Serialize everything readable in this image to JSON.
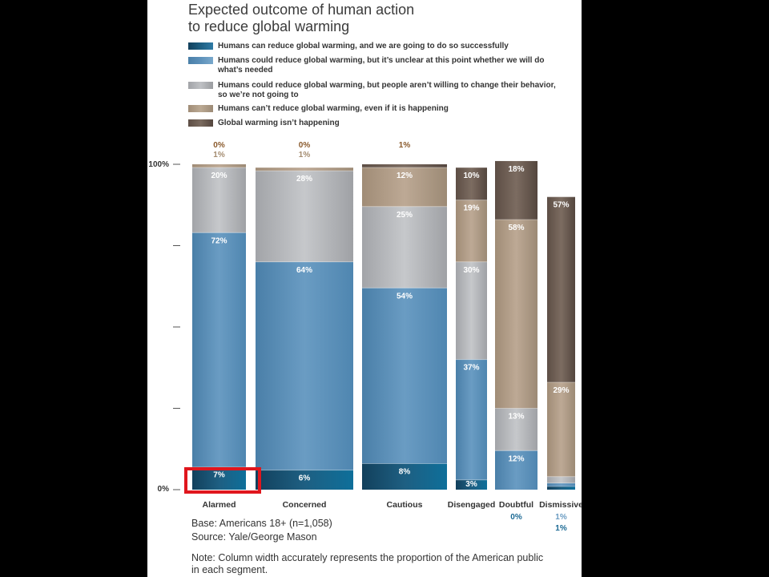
{
  "chart_data": {
    "type": "bar",
    "subtype": "stacked-100-variable-width",
    "title": "Expected outcome of human action to reduce global warming",
    "title_lines": [
      "Expected outcome of human action",
      "to reduce global warming"
    ],
    "ylim": [
      0,
      100
    ],
    "y_ticks": [
      "100%",
      "0%"
    ],
    "categories": [
      "Alarmed",
      "Concerned",
      "Cautious",
      "Disengaged",
      "Doubtful",
      "Dismissive"
    ],
    "series": [
      {
        "name": "Humans can reduce global warming, and we are going to do so successfully",
        "label_lines": [
          "Humans can reduce global warming, and we are going to do so successfully"
        ],
        "values": [
          7,
          6,
          8,
          3,
          0,
          1
        ],
        "labels": [
          "7%",
          "6%",
          "8%",
          "3%",
          "0%",
          "1%"
        ]
      },
      {
        "name": "Humans could reduce global warming, but it's unclear at this point whether we will do what's needed",
        "label_lines": [
          "Humans could reduce global warming, but it’s unclear at this point whether we will do",
          "what’s needed"
        ],
        "values": [
          72,
          64,
          54,
          37,
          12,
          1
        ],
        "labels": [
          "72%",
          "64%",
          "54%",
          "37%",
          "12%",
          "1%"
        ]
      },
      {
        "name": "Humans could reduce global warming, but people aren't willing to change their behavior, so we're not going to",
        "label_lines": [
          "Humans could reduce global warming, but people aren’t willing to change their behavior,",
          "so we’re not going to"
        ],
        "values": [
          20,
          28,
          25,
          30,
          13,
          2
        ],
        "labels": [
          "20%",
          "28%",
          "25%",
          "30%",
          "13%",
          "2%"
        ]
      },
      {
        "name": "Humans can't reduce global warming, even if it is happening",
        "label_lines": [
          "Humans can’t reduce global warming, even if it is happening"
        ],
        "values": [
          1,
          1,
          12,
          19,
          58,
          29
        ],
        "labels": [
          "1%",
          "1%",
          "12%",
          "19%",
          "58%",
          "29%"
        ]
      },
      {
        "name": "Global warming isn't happening",
        "label_lines": [
          "Global warming isn’t happening"
        ],
        "values": [
          0,
          0,
          1,
          10,
          18,
          57
        ],
        "labels": [
          "0%",
          "0%",
          "1%",
          "10%",
          "18%",
          "57%"
        ]
      }
    ],
    "relative_widths": [
      0.18,
      0.33,
      0.19,
      0.07,
      0.11,
      0.06
    ],
    "colors": [
      "#1e5f82",
      "#5d91ba",
      "#b5b7bb",
      "#b3a08a",
      "#6e5d52"
    ],
    "highlight_category": "Alarmed",
    "highlight_color": "#e0161d"
  },
  "footer": {
    "base": "Base: Americans 18+ (n=1,058)",
    "source": "Source: Yale/George Mason",
    "note_lines": [
      "Note: Column width accurately represents the proportion of the American public",
      "in each segment."
    ]
  }
}
